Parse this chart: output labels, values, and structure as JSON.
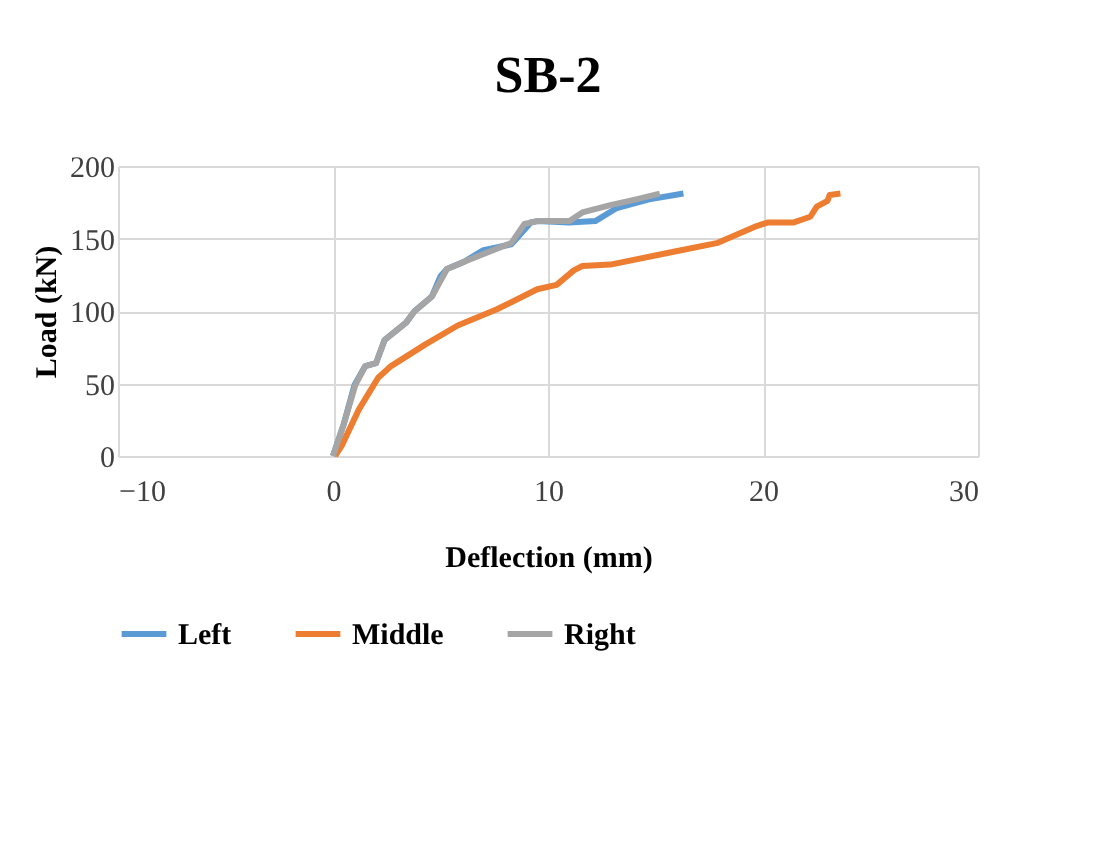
{
  "chart_data": {
    "type": "line",
    "title": "SB-2",
    "xlabel": "Deflection (mm)",
    "ylabel": "Load (kN)",
    "xlim": [
      -10,
      30
    ],
    "xticks": [
      -10,
      0,
      10,
      20,
      30
    ],
    "ylim": [
      0,
      200
    ],
    "yticks": [
      0,
      50,
      100,
      150,
      200
    ],
    "grid": true,
    "legend": "bottom",
    "series": [
      {
        "name": "Left",
        "color": "#5b9bd5",
        "x": [
          0,
          0.5,
          1.0,
          1.5,
          2.0,
          2.4,
          3.4,
          3.8,
          4.6,
          5.0,
          5.3,
          6.1,
          7.0,
          8.3,
          9.2,
          9.5,
          11,
          12.2,
          13.2,
          14.7,
          16.3
        ],
        "values": [
          0,
          22,
          49,
          62,
          64,
          80,
          92,
          100,
          110,
          124,
          129,
          134,
          142,
          146,
          161,
          162,
          161,
          162,
          171,
          177,
          181
        ]
      },
      {
        "name": "Middle",
        "color": "#ed7d31",
        "x": [
          0.1,
          0.4,
          1.2,
          2.1,
          2.7,
          4.3,
          5.8,
          7.6,
          9.5,
          10.4,
          11.2,
          11.6,
          12.9,
          15.9,
          17.9,
          19.6,
          20.2,
          21.4,
          22.2,
          22.5,
          23.0,
          23.1,
          23.6
        ],
        "values": [
          0,
          7,
          32,
          54,
          62,
          77,
          90,
          101,
          115,
          118,
          128,
          131,
          132,
          141,
          147,
          158,
          161,
          161,
          165,
          172,
          176,
          180,
          181
        ]
      },
      {
        "name": "Right",
        "color": "#a5a5a5",
        "x": [
          0,
          0.5,
          1.04,
          1.5,
          2.0,
          2.4,
          3.4,
          3.8,
          4.6,
          5.3,
          6.1,
          8.3,
          8.9,
          9.5,
          11,
          11.6,
          12.9,
          14.1,
          15.2
        ],
        "values": [
          0,
          22,
          49,
          62,
          64,
          80,
          92,
          100,
          110,
          129,
          134,
          147,
          160,
          162,
          162,
          168,
          173,
          177,
          181
        ]
      }
    ]
  }
}
